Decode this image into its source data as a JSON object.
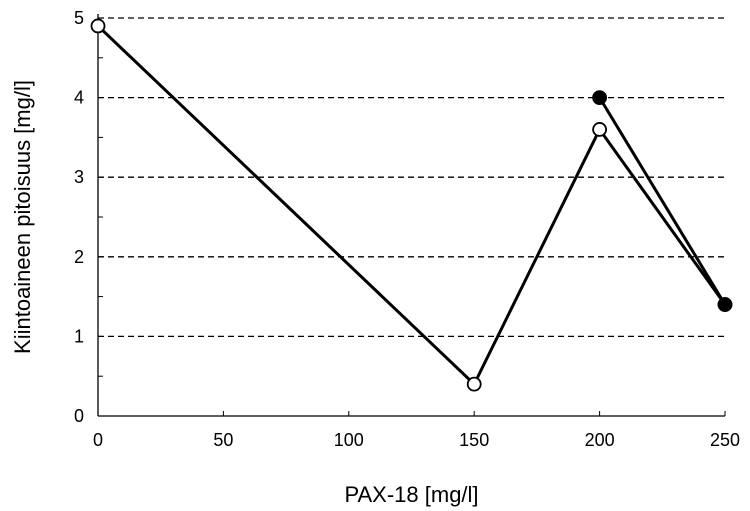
{
  "chart_data": {
    "type": "line",
    "title": "",
    "xlabel": "PAX-18 [mg/l]",
    "ylabel": "Kiintoaineen pitoisuus [mg/l]",
    "xlim": [
      0,
      250
    ],
    "ylim": [
      0,
      5
    ],
    "xticks": [
      0,
      50,
      100,
      150,
      200,
      250
    ],
    "yticks": [
      0,
      1,
      2,
      3,
      4,
      5
    ],
    "grid": "horizontal-dashed",
    "series": [
      {
        "marker": "open-circle",
        "points": [
          {
            "x": 0,
            "y": 4.9
          },
          {
            "x": 150,
            "y": 0.4
          },
          {
            "x": 200,
            "y": 3.6
          },
          {
            "x": 250,
            "y": 1.4
          }
        ]
      },
      {
        "marker": "filled-circle",
        "points": [
          {
            "x": 200,
            "y": 4.0
          },
          {
            "x": 250,
            "y": 1.4
          }
        ]
      }
    ],
    "colors": {
      "line": "#000000",
      "grid": "#000000"
    }
  }
}
